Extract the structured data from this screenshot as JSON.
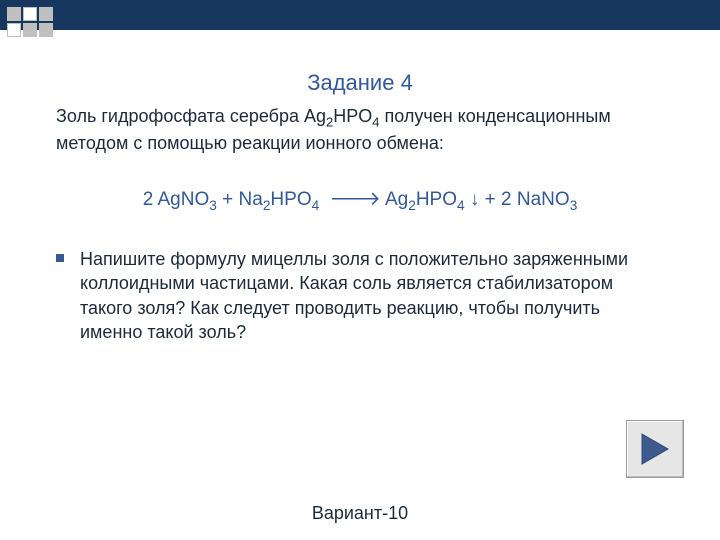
{
  "colors": {
    "topbar": "#17375e",
    "accent": "#31589c",
    "text": "#1b2a3a",
    "bullet": "#355a95",
    "play_fill": "#3d5a8f",
    "btn_bg": "#e6e6e6"
  },
  "decoration": {
    "squares": [
      "filled",
      "blank",
      "filled",
      "blank",
      "filled",
      "filled"
    ]
  },
  "title": "Задание 4",
  "intro_html": "Золь гидрофосфата серебра Ag<sub>2</sub>HPO<sub>4</sub> получен конденсационным методом с помощью реакции ионного обмена:",
  "equation_html": "2 AgNO<sub>3</sub> + Na<sub>2</sub>HPO<sub>4</sub> &nbsp;🡒 Ag<sub>2</sub>HPO<sub>4</sub> ↓ + 2 NaNO<sub>3</sub>",
  "task_html": "Напишите формулу мицеллы золя с положительно заряженными коллоидными частицами. Какая соль является стабилизатором такого золя? Как следует проводить реакцию, чтобы получить именно такой золь?",
  "footer": "Вариант-10",
  "typography": {
    "title_fontsize": 22,
    "body_fontsize": 18,
    "equation_fontsize": 19
  }
}
